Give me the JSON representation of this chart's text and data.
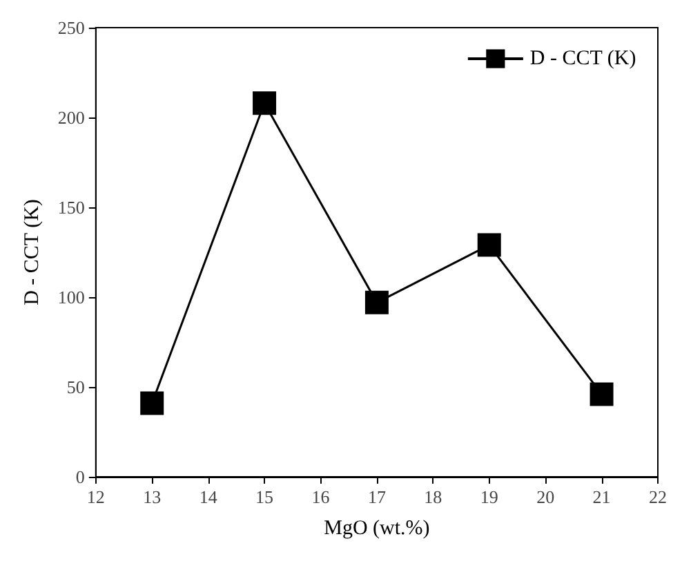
{
  "chart_data": {
    "type": "line",
    "xlabel": "MgO (wt.%)",
    "ylabel": "D - CCT (K)",
    "x": [
      13,
      15,
      17,
      19,
      21
    ],
    "series": [
      {
        "name": "D - CCT (K)",
        "color": "#000000",
        "values": [
          41,
          208,
          97,
          129,
          46
        ]
      }
    ],
    "xlim": [
      12,
      22
    ],
    "xticks": [
      12,
      13,
      14,
      15,
      16,
      17,
      18,
      19,
      20,
      21,
      22
    ],
    "ylim": [
      0,
      250
    ],
    "yticks": [
      0,
      50,
      100,
      150,
      200,
      250
    ],
    "grid": false,
    "legend": "top right",
    "marker": "square",
    "line_style": "solid"
  }
}
